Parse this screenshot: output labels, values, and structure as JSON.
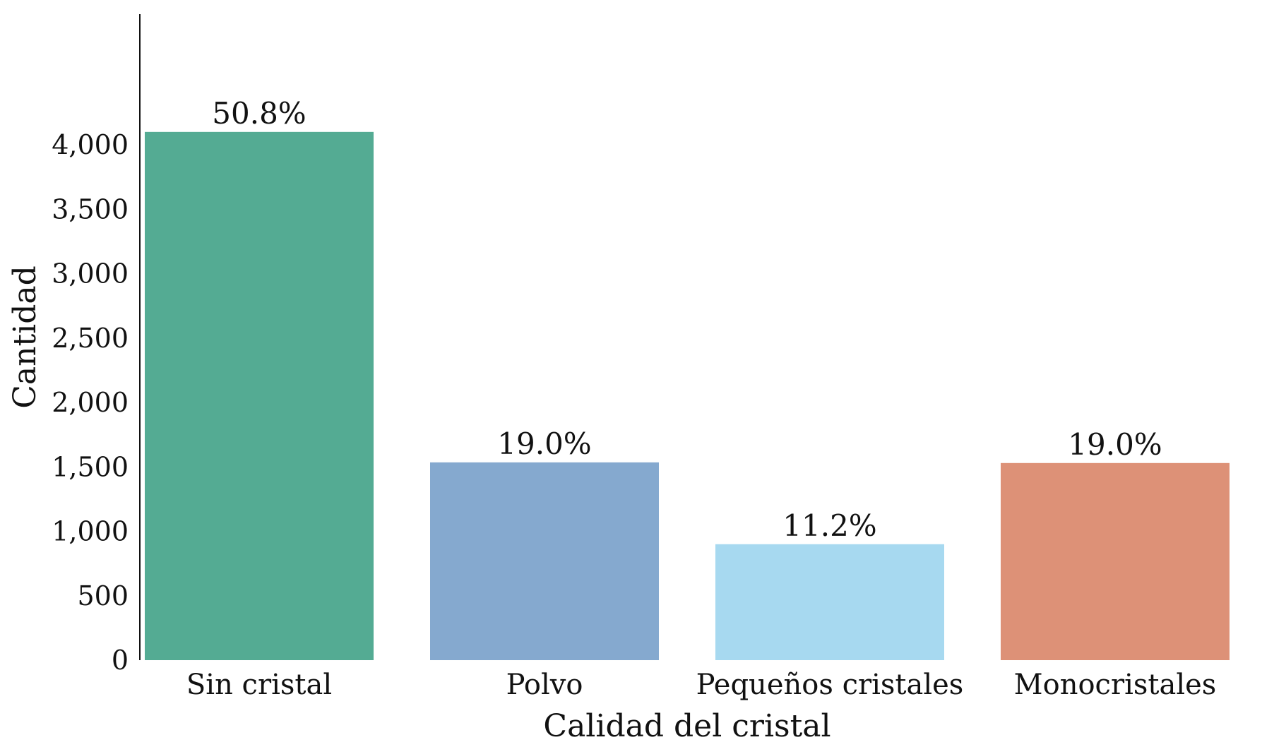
{
  "chart_data": {
    "type": "bar",
    "title": "",
    "xlabel": "Calidad del cristal",
    "ylabel": "Cantidad",
    "categories": [
      "Sin cristal",
      "Polvo",
      "Pequeños cristales",
      "Monocristales"
    ],
    "values": [
      4100,
      1535,
      900,
      1530
    ],
    "data_labels": [
      "50.8%",
      "19.0%",
      "11.2%",
      "19.0%"
    ],
    "colors": [
      "#54ab93",
      "#85a9cf",
      "#a7d9f0",
      "#dd9177"
    ],
    "ylim": [
      0,
      4300
    ],
    "yticks": [
      0,
      500,
      1000,
      1500,
      2000,
      2500,
      3000,
      3500,
      4000
    ],
    "ytick_labels": [
      "0",
      "500",
      "1,000",
      "1,500",
      "2,000",
      "2,500",
      "3,000",
      "3,500",
      "4,000"
    ],
    "grid": false,
    "legend": "none"
  }
}
